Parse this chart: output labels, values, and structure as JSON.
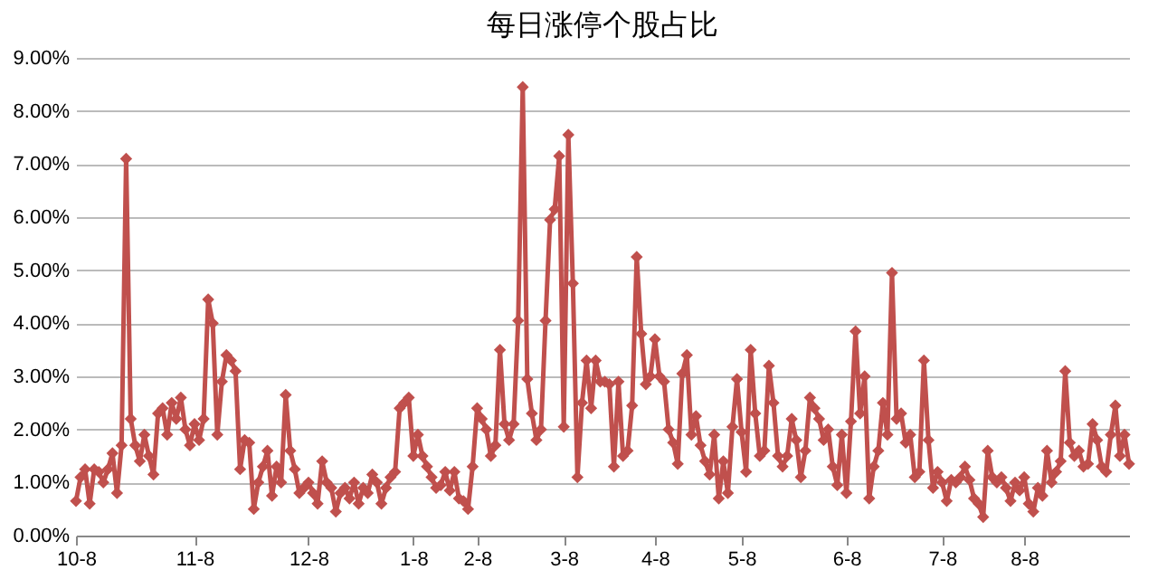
{
  "chart_data": {
    "type": "line",
    "title": "每日涨停个股占比",
    "marker": "diamond",
    "grid": "y",
    "line_style": "solid",
    "categories": [
      "10-8",
      null,
      null,
      null,
      null,
      null,
      null,
      null,
      null,
      null,
      null,
      null,
      null,
      null,
      null,
      null,
      null,
      null,
      null,
      null,
      null,
      null,
      null,
      null,
      null,
      null,
      "11-8",
      null,
      null,
      null,
      null,
      null,
      null,
      null,
      null,
      null,
      null,
      null,
      null,
      null,
      null,
      null,
      null,
      null,
      null,
      null,
      null,
      null,
      null,
      null,
      null,
      "12-8",
      null,
      null,
      null,
      null,
      null,
      null,
      null,
      null,
      null,
      null,
      null,
      null,
      null,
      null,
      null,
      null,
      null,
      null,
      null,
      null,
      null,
      null,
      "1-8",
      null,
      null,
      null,
      null,
      null,
      null,
      null,
      null,
      null,
      null,
      null,
      null,
      null,
      "2-8",
      null,
      null,
      null,
      null,
      null,
      null,
      null,
      null,
      null,
      null,
      null,
      null,
      null,
      null,
      null,
      null,
      null,
      null,
      "3-8",
      null,
      null,
      null,
      null,
      null,
      null,
      null,
      null,
      null,
      null,
      null,
      null,
      null,
      null,
      null,
      null,
      null,
      null,
      null,
      "4-8",
      null,
      null,
      null,
      null,
      null,
      null,
      null,
      null,
      null,
      null,
      null,
      null,
      null,
      null,
      null,
      null,
      null,
      null,
      "5-8",
      null,
      null,
      null,
      null,
      null,
      null,
      null,
      null,
      null,
      null,
      null,
      null,
      null,
      null,
      null,
      null,
      null,
      null,
      null,
      null,
      null,
      null,
      "6-8",
      null,
      null,
      null,
      null,
      null,
      null,
      null,
      null,
      null,
      null,
      null,
      null,
      null,
      null,
      null,
      null,
      null,
      null,
      null,
      null,
      "7-8",
      null,
      null,
      null,
      null,
      null,
      null,
      null,
      null,
      null,
      null,
      null,
      null,
      null,
      null,
      null,
      null,
      null,
      "8-8",
      null,
      null,
      null,
      null,
      null,
      null,
      null,
      null,
      null,
      null,
      null,
      null,
      null,
      null,
      null,
      null,
      null,
      null,
      null,
      null,
      null,
      null,
      null
    ],
    "series": [
      {
        "color": "#c0504d",
        "values": [
          0.65,
          1.1,
          1.25,
          0.6,
          1.25,
          1.2,
          1.0,
          1.25,
          1.55,
          0.8,
          1.7,
          7.1,
          2.2,
          1.7,
          1.4,
          1.9,
          1.5,
          1.15,
          2.3,
          2.4,
          1.9,
          2.5,
          2.2,
          2.6,
          2.0,
          1.7,
          2.1,
          1.8,
          2.2,
          4.45,
          4.0,
          1.9,
          2.9,
          3.4,
          3.3,
          3.1,
          1.25,
          1.8,
          1.75,
          0.5,
          1.0,
          1.3,
          1.6,
          0.75,
          1.3,
          1.0,
          2.65,
          1.6,
          1.25,
          0.8,
          0.9,
          1.0,
          0.8,
          0.6,
          1.4,
          1.0,
          0.9,
          0.45,
          0.8,
          0.9,
          0.7,
          1.0,
          0.6,
          0.9,
          0.8,
          1.15,
          1.0,
          0.6,
          0.9,
          1.1,
          1.2,
          2.4,
          2.5,
          2.6,
          1.5,
          1.9,
          1.5,
          1.3,
          1.1,
          0.9,
          0.95,
          1.2,
          0.85,
          1.2,
          0.7,
          0.65,
          0.5,
          1.3,
          2.4,
          2.2,
          2.0,
          1.5,
          1.7,
          3.5,
          2.1,
          1.8,
          2.1,
          4.05,
          8.45,
          2.95,
          2.3,
          1.8,
          2.0,
          4.05,
          5.95,
          6.15,
          7.15,
          2.05,
          7.55,
          4.75,
          1.1,
          2.5,
          3.3,
          2.4,
          3.3,
          2.9,
          2.9,
          2.85,
          1.3,
          2.9,
          1.5,
          1.6,
          2.45,
          5.25,
          3.8,
          2.85,
          3.0,
          3.7,
          3.0,
          2.9,
          2.0,
          1.75,
          1.35,
          3.05,
          3.4,
          1.9,
          2.25,
          1.7,
          1.4,
          1.15,
          1.9,
          0.7,
          1.4,
          0.8,
          2.05,
          2.95,
          1.95,
          1.2,
          3.5,
          2.3,
          1.5,
          1.6,
          3.2,
          2.5,
          1.5,
          1.3,
          1.5,
          2.2,
          1.8,
          1.1,
          1.6,
          2.6,
          2.4,
          2.2,
          1.8,
          2.0,
          1.3,
          0.95,
          1.9,
          0.8,
          2.15,
          3.85,
          2.3,
          3.0,
          0.7,
          1.3,
          1.6,
          2.5,
          1.9,
          4.95,
          2.2,
          2.3,
          1.75,
          1.9,
          1.1,
          1.2,
          3.3,
          1.8,
          0.9,
          1.2,
          1.0,
          0.65,
          1.05,
          1.0,
          1.1,
          1.3,
          1.05,
          0.7,
          0.6,
          0.35,
          1.6,
          1.1,
          1.0,
          1.1,
          0.9,
          0.65,
          1.0,
          0.85,
          1.1,
          0.6,
          0.45,
          0.9,
          0.75,
          1.6,
          1.0,
          1.2,
          1.4,
          3.1,
          1.75,
          1.5,
          1.6,
          1.3,
          1.35,
          2.1,
          1.8,
          1.3,
          1.2,
          1.9,
          2.45,
          1.5,
          1.9,
          1.35
        ]
      }
    ],
    "ylim": [
      0,
      9
    ],
    "yticks": [
      {
        "value": 0,
        "label": "0.00%"
      },
      {
        "value": 1,
        "label": "1.00%"
      },
      {
        "value": 2,
        "label": "2.00%"
      },
      {
        "value": 3,
        "label": "3.00%"
      },
      {
        "value": 4,
        "label": "4.00%"
      },
      {
        "value": 5,
        "label": "5.00%"
      },
      {
        "value": 6,
        "label": "6.00%"
      },
      {
        "value": 7,
        "label": "7.00%"
      },
      {
        "value": 8,
        "label": "8.00%"
      },
      {
        "value": 9,
        "label": "9.00%"
      }
    ]
  }
}
